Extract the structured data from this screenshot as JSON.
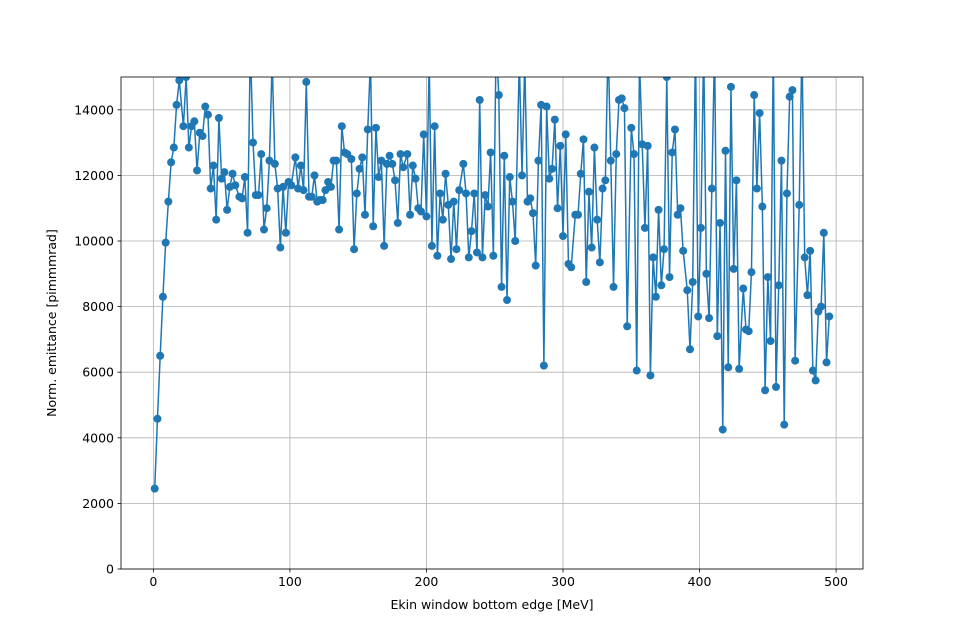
{
  "chart_data": {
    "type": "line",
    "xlabel": "Ekin window bottom edge [MeV]",
    "ylabel": "Norm. emittance [pimmmrad]",
    "color": "#1f77b4",
    "grid": true,
    "xlim": [
      -23.7,
      519.7
    ],
    "ylim": [
      0,
      15000
    ],
    "xticks": [
      0,
      100,
      200,
      300,
      400,
      500
    ],
    "yticks": [
      0,
      2000,
      4000,
      6000,
      8000,
      10000,
      12000,
      14000
    ],
    "x": [
      1,
      3,
      5,
      7,
      9,
      11,
      13,
      15,
      17,
      19,
      22,
      24,
      26,
      28,
      30,
      32,
      34,
      36,
      38,
      40,
      42,
      44,
      46,
      48,
      50,
      52,
      54,
      56,
      58,
      60,
      63,
      65,
      67,
      69,
      71,
      73,
      75,
      77,
      79,
      81,
      83,
      85,
      87,
      89,
      91,
      93,
      95,
      97,
      99,
      101,
      104,
      106,
      108,
      110,
      112,
      114,
      116,
      118,
      120,
      122,
      124,
      126,
      128,
      130,
      132,
      134,
      136,
      138,
      140,
      142,
      145,
      147,
      149,
      151,
      153,
      155,
      157,
      159,
      161,
      163,
      165,
      167,
      169,
      171,
      173,
      175,
      177,
      179,
      181,
      183,
      186,
      188,
      190,
      192,
      194,
      196,
      198,
      200,
      202,
      204,
      206,
      208,
      210,
      212,
      214,
      216,
      218,
      220,
      222,
      224,
      227,
      229,
      231,
      233,
      235,
      237,
      239,
      241,
      243,
      245,
      247,
      249,
      251,
      253,
      255,
      257,
      259,
      261,
      263,
      265,
      268,
      270,
      272,
      274,
      276,
      278,
      280,
      282,
      284,
      286,
      288,
      290,
      292,
      294,
      296,
      298,
      300,
      302,
      304,
      306,
      309,
      311,
      313,
      315,
      317,
      319,
      321,
      323,
      325,
      327,
      329,
      331,
      333,
      335,
      337,
      339,
      341,
      343,
      345,
      347,
      350,
      352,
      354,
      356,
      358,
      360,
      362,
      364,
      366,
      368,
      370,
      372,
      374,
      376,
      378,
      380,
      382,
      384,
      386,
      388,
      391,
      393,
      395,
      397,
      399,
      401,
      403,
      405,
      407,
      409,
      411,
      413,
      415,
      417,
      419,
      421,
      423,
      425,
      427,
      429,
      432,
      434,
      436,
      438,
      440,
      442,
      444,
      446,
      448,
      450,
      452,
      454,
      456,
      458,
      460,
      462,
      464,
      466,
      468,
      470,
      473,
      475,
      477,
      479,
      481,
      483,
      485,
      487,
      489,
      491,
      493,
      495
    ],
    "values": [
      2450,
      4580,
      6500,
      8300,
      9950,
      11200,
      12400,
      12850,
      14150,
      14900,
      13500,
      15000,
      12850,
      13500,
      13650,
      12150,
      13300,
      13200,
      14100,
      13850,
      11600,
      12300,
      10650,
      13750,
      11900,
      12100,
      10950,
      11650,
      12050,
      11700,
      11350,
      11300,
      11950,
      10250,
      16000,
      13000,
      11400,
      11400,
      12650,
      10350,
      11000,
      12450,
      15500,
      12350,
      11600,
      9800,
      11650,
      10250,
      11800,
      11700,
      12550,
      11600,
      12300,
      11550,
      14850,
      11350,
      11350,
      12000,
      11200,
      11250,
      11250,
      11550,
      11800,
      11650,
      12450,
      12450,
      10350,
      13500,
      12700,
      12650,
      12500,
      9750,
      11450,
      12200,
      12550,
      10800,
      13400,
      15500,
      10450,
      13450,
      11950,
      12450,
      9850,
      12350,
      12600,
      12350,
      11850,
      10550,
      12650,
      12250,
      12650,
      10800,
      12300,
      11900,
      11000,
      10900,
      13250,
      10750,
      15500,
      9850,
      13500,
      9550,
      11450,
      10650,
      12050,
      11100,
      9450,
      11200,
      9750,
      11550,
      12350,
      11450,
      9500,
      10300,
      11450,
      9650,
      14300,
      9500,
      11400,
      11050,
      12700,
      9550,
      16000,
      14450,
      8600,
      12600,
      8200,
      11950,
      11200,
      10000,
      15500,
      12000,
      15500,
      11200,
      11300,
      10850,
      9250,
      12450,
      14150,
      6200,
      14100,
      11900,
      12200,
      13700,
      11000,
      12900,
      10150,
      13250,
      9300,
      9200,
      10800,
      10800,
      12050,
      13100,
      8750,
      11500,
      9800,
      12850,
      10650,
      9350,
      11600,
      11850,
      16000,
      12450,
      8600,
      12650,
      14300,
      14350,
      14050,
      7400,
      13450,
      12650,
      6050,
      15500,
      12950,
      10400,
      12900,
      5900,
      9500,
      8300,
      10950,
      8650,
      9750,
      15000,
      8900,
      12700,
      13400,
      10800,
      11000,
      9700,
      8500,
      6700,
      8750,
      16000,
      7700,
      10400,
      16000,
      9000,
      7650,
      11600,
      16000,
      7100,
      10550,
      4250,
      12750,
      6150,
      14700,
      9150,
      11850,
      6100,
      8550,
      7300,
      7250,
      9050,
      14450,
      11600,
      13900,
      11050,
      5450,
      8900,
      6950,
      16000,
      5550,
      8650,
      12450,
      4400,
      11450,
      14400,
      14600,
      6350,
      11100,
      16000,
      9500,
      8350,
      9700,
      6050,
      5750,
      7850,
      8000,
      10250,
      6300,
      7700
    ]
  }
}
